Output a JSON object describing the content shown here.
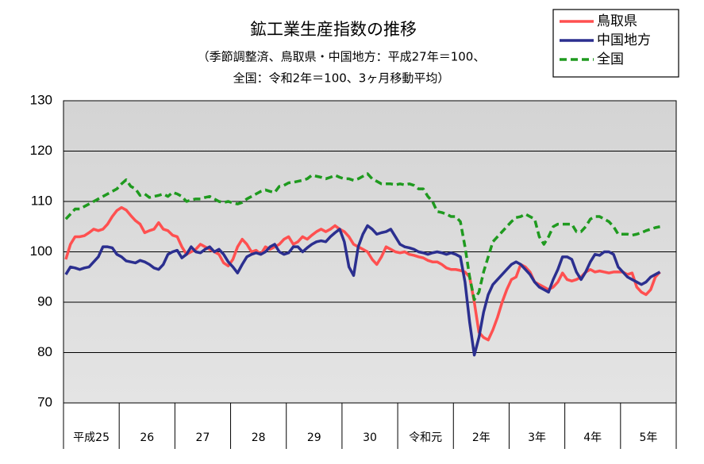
{
  "chart_data": {
    "type": "line",
    "title": "鉱工業生産指数の推移",
    "subtitle": [
      "（季節調整済、鳥取県・中国地方：平成27年＝100、",
      "全国：令和2年＝100、3ヶ月移動平均）"
    ],
    "categories": [
      null,
      null,
      null,
      null,
      null,
      null,
      "平成25",
      null,
      null,
      null,
      null,
      null,
      null,
      null,
      null,
      null,
      null,
      null,
      "26",
      null,
      null,
      null,
      null,
      null,
      null,
      null,
      null,
      null,
      null,
      null,
      "27",
      null,
      null,
      null,
      null,
      null,
      null,
      null,
      null,
      null,
      null,
      null,
      "28",
      null,
      null,
      null,
      null,
      null,
      null,
      null,
      null,
      null,
      null,
      null,
      "29",
      null,
      null,
      null,
      null,
      null,
      null,
      null,
      null,
      null,
      null,
      null,
      "30",
      null,
      null,
      null,
      null,
      null,
      null,
      null,
      null,
      null,
      null,
      null,
      "令和元",
      null,
      null,
      null,
      null,
      null,
      null,
      null,
      null,
      null,
      null,
      null,
      "2年",
      null,
      null,
      null,
      null,
      null,
      null,
      null,
      null,
      null,
      null,
      null,
      "3年",
      null,
      null,
      null,
      null,
      null,
      null,
      null,
      null,
      null,
      null,
      null,
      "4年",
      null,
      null,
      null,
      null,
      null,
      null,
      null,
      null,
      null,
      null,
      null,
      "5年",
      null,
      null,
      null,
      null,
      null
    ],
    "series": [
      {
        "name": "鳥取県",
        "color": "#ff5050",
        "dash": false,
        "values": [
          98.5,
          101.5,
          103,
          103,
          103.2,
          103.8,
          104.5,
          104.2,
          104.5,
          105.5,
          107,
          108.2,
          108.8,
          108.3,
          107.2,
          106.2,
          105.5,
          103.8,
          104.2,
          104.5,
          105.8,
          104.5,
          104.2,
          103.3,
          103,
          101,
          99.5,
          100,
          100.5,
          101.5,
          101,
          100.5,
          100,
          99.5,
          97.8,
          97.2,
          98.5,
          101,
          102.5,
          101.5,
          100,
          100.3,
          99.5,
          101,
          100.5,
          101,
          101.5,
          102.5,
          103,
          101.5,
          102,
          103,
          102.5,
          103.3,
          104,
          104.5,
          104,
          104.5,
          105.2,
          104.5,
          104,
          103,
          101.5,
          101,
          100.5,
          100,
          98.5,
          97.5,
          99,
          101,
          100.5,
          100,
          99.8,
          100,
          99.5,
          99.3,
          99,
          98.8,
          98.3,
          98,
          98,
          97.5,
          96.8,
          96.5,
          96.5,
          96.3,
          96,
          95,
          90,
          84,
          83,
          82.5,
          84.5,
          87,
          90,
          92.5,
          94.5,
          95,
          97.5,
          97,
          96,
          94,
          93.5,
          93,
          92.5,
          93,
          94,
          95.8,
          94.5,
          94.2,
          94.5,
          95,
          96,
          96.5,
          96,
          96.2,
          96,
          95.8,
          96,
          96,
          96,
          95.5,
          95.8,
          93,
          92,
          91.5,
          92.5,
          95,
          96,
          null,
          null,
          null
        ]
      },
      {
        "name": "中国地方",
        "color": "#2b2f8f",
        "dash": false,
        "values": [
          95.5,
          97,
          96.8,
          96.5,
          96.8,
          97,
          98,
          99,
          101,
          101,
          100.8,
          99.5,
          99,
          98.2,
          98,
          97.8,
          98.3,
          98,
          97.5,
          96.8,
          96.5,
          97.5,
          99.5,
          100,
          100.3,
          98.8,
          99.5,
          101,
          100,
          99.8,
          100.5,
          101,
          100,
          100.5,
          99.5,
          98,
          97,
          95.8,
          97.5,
          99,
          99.5,
          99.8,
          99.5,
          100,
          101,
          101.5,
          100,
          99.5,
          99.8,
          101,
          101,
          100,
          100.8,
          101.5,
          102,
          102.2,
          102,
          103,
          103.8,
          104.5,
          102,
          97,
          95.3,
          101,
          103.5,
          105.2,
          104.5,
          103.5,
          103.8,
          104,
          104.5,
          103,
          101.5,
          101,
          100.8,
          100.5,
          100,
          99.8,
          99.5,
          99.8,
          100,
          99.8,
          99.5,
          99.8,
          99.5,
          99,
          94,
          86,
          79.5,
          83,
          88,
          91.5,
          93.5,
          94.5,
          95.5,
          96.5,
          97.5,
          98,
          97.5,
          96.5,
          95.5,
          94,
          93,
          92.5,
          92,
          94.5,
          96.5,
          99,
          99,
          98.5,
          96,
          94.5,
          96,
          98,
          99.5,
          99.3,
          100,
          100,
          99.5,
          97,
          96,
          95,
          94.5,
          94,
          93.5,
          94,
          95,
          95.5,
          96,
          null,
          null,
          null
        ]
      },
      {
        "name": "全国",
        "color": "#1f9a1f",
        "dash": true,
        "values": [
          106.5,
          107.5,
          108.5,
          108.5,
          109,
          109.5,
          110,
          110.5,
          111,
          111.5,
          112,
          112.5,
          113.5,
          114.3,
          113,
          112.5,
          111.2,
          111.5,
          110.8,
          111,
          111.2,
          111.5,
          111,
          111.8,
          111.5,
          111,
          110,
          110.3,
          110.5,
          110.5,
          110.8,
          111,
          110.5,
          110,
          109.8,
          110,
          109.7,
          109.5,
          109.8,
          110.5,
          111,
          111.5,
          112,
          112.3,
          112,
          111.8,
          113,
          113.2,
          113.7,
          113.8,
          114,
          114.2,
          114.5,
          115.2,
          115,
          114.8,
          114.5,
          114.8,
          115.2,
          114.8,
          114.5,
          114.5,
          114.2,
          114.5,
          115,
          115.5,
          114.5,
          114,
          113.5,
          113.5,
          113.5,
          113.3,
          113.5,
          113.3,
          113.5,
          113.2,
          112.5,
          112.5,
          111,
          110,
          108,
          107.8,
          107.5,
          107,
          107,
          106,
          101,
          95,
          90.5,
          92,
          96,
          99,
          102,
          103,
          104,
          105,
          106,
          106.8,
          107,
          107.5,
          107,
          106.5,
          103,
          101.5,
          103,
          105,
          105.5,
          105.5,
          105.5,
          105.5,
          104,
          104,
          105,
          106.5,
          107,
          107,
          106.5,
          106,
          105,
          103.5,
          103.5,
          103.5,
          103.3,
          103.5,
          103.8,
          104.2,
          104.5,
          104.8,
          105,
          null,
          null,
          null
        ]
      }
    ],
    "ylim": [
      70,
      130
    ],
    "yticks": [
      70,
      80,
      90,
      100,
      110,
      120,
      130
    ],
    "grid": true
  }
}
